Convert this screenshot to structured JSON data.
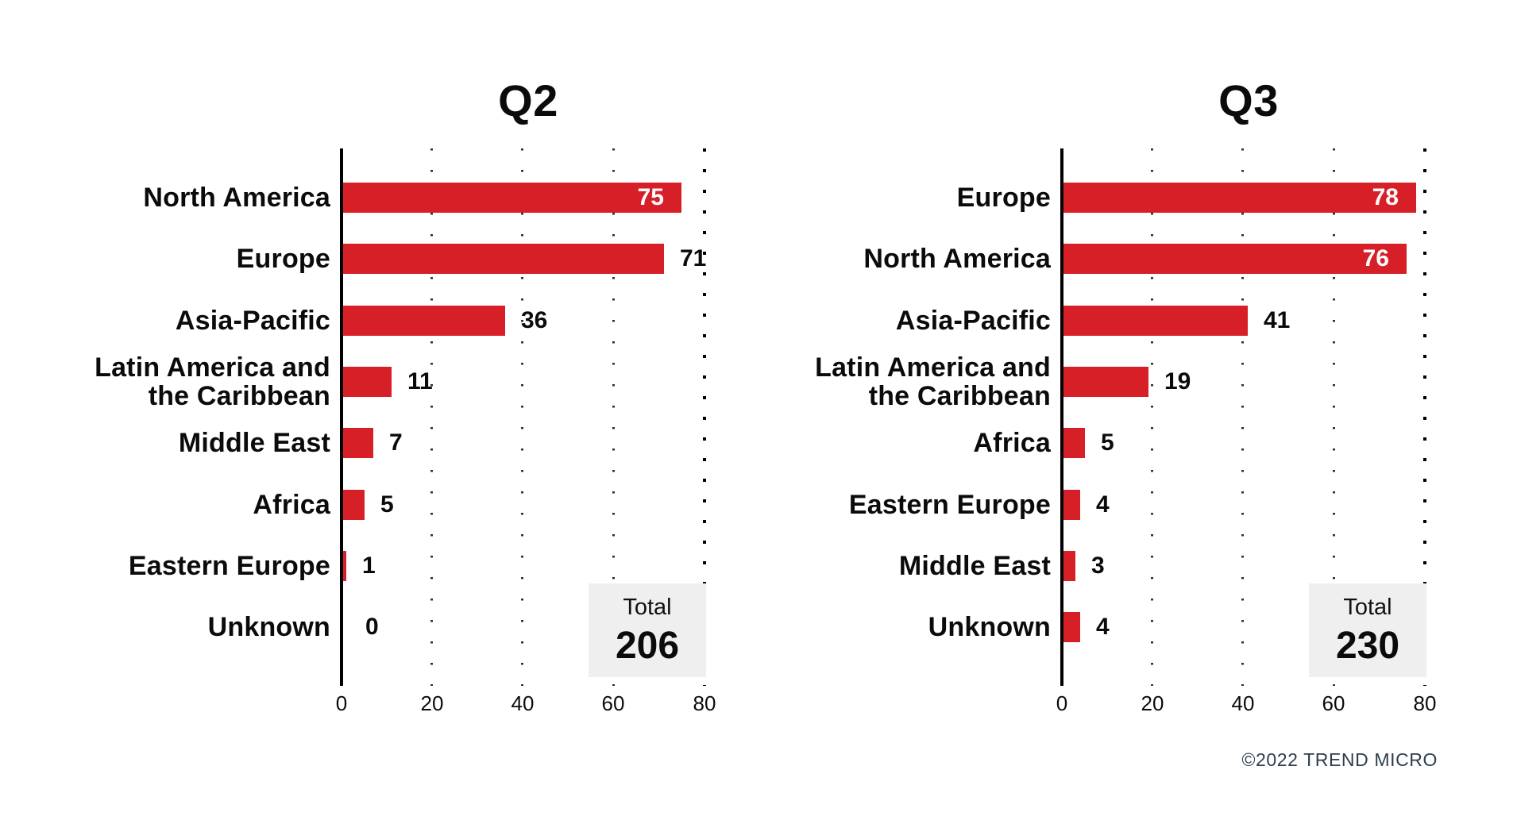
{
  "footer": {
    "copyright": "©2022 TREND MICRO"
  },
  "colors": {
    "bar": "#d71f27",
    "text": "#0b0b0b",
    "total_box_bg": "#efefef",
    "footer_text": "#2e3e4c"
  },
  "chart_data": [
    {
      "type": "bar",
      "orientation": "horizontal",
      "title": "Q2",
      "xlim": [
        0,
        80
      ],
      "ticks": [
        0,
        20,
        40,
        60,
        80
      ],
      "grid": "dotted-vertical",
      "legend": "none",
      "categories": [
        "North America",
        "Europe",
        "Asia-Pacific",
        "Latin America and the Caribbean",
        "Middle East",
        "Africa",
        "Eastern Europe",
        "Unknown"
      ],
      "values": [
        75,
        71,
        36,
        11,
        7,
        5,
        1,
        0
      ],
      "value_label_inside": [
        true,
        false,
        false,
        false,
        false,
        false,
        false,
        false
      ],
      "total_label": "Total",
      "total": 206
    },
    {
      "type": "bar",
      "orientation": "horizontal",
      "title": "Q3",
      "xlim": [
        0,
        80
      ],
      "ticks": [
        0,
        20,
        40,
        60,
        80
      ],
      "grid": "dotted-vertical",
      "legend": "none",
      "categories": [
        "Europe",
        "North America",
        "Asia-Pacific",
        "Latin America and the Caribbean",
        "Africa",
        "Eastern Europe",
        "Middle East",
        "Unknown"
      ],
      "values": [
        78,
        76,
        41,
        19,
        5,
        4,
        3,
        4
      ],
      "value_label_inside": [
        true,
        true,
        false,
        false,
        false,
        false,
        false,
        false
      ],
      "total_label": "Total",
      "total": 230
    }
  ]
}
